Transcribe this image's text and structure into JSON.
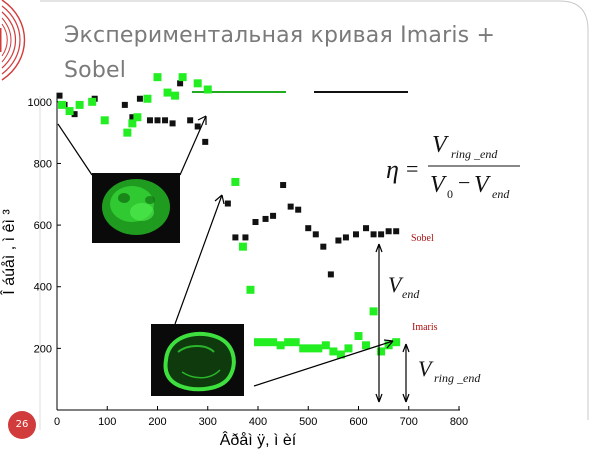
{
  "slide": {
    "title": "Экспериментальная кривая Imaris + Sobel",
    "slide_number": "26"
  },
  "formula": {
    "eta": "η",
    "equals": "=",
    "numerator_v": "V",
    "numerator_sub": "ring _end",
    "den_v0": "V",
    "den_v0_sub": "0",
    "minus": "−",
    "den_vend": "V",
    "den_vend_sub": "end"
  },
  "labels": {
    "vend_v": "V",
    "vend_sub": "end",
    "vring_v": "V",
    "vring_sub": "ring _end"
  },
  "colors": {
    "sobel_series": "#111111",
    "imaris_series": "#22ee22",
    "legend_green_line": "#22aa22",
    "legend_black_line": "#111111",
    "series_label": "#aa1111",
    "accent_red": "#d23b3b"
  },
  "chart_data": {
    "type": "scatter",
    "xlim": [
      0,
      800
    ],
    "ylim": [
      0,
      1100
    ],
    "x_ticks": [
      "0",
      "100",
      "200",
      "300",
      "400",
      "500",
      "600",
      "700",
      "800"
    ],
    "y_ticks": [
      "200",
      "400",
      "600",
      "800",
      "1000"
    ],
    "xlabel": "Âðåì ÿ, ì èí",
    "ylabel": "Î áúåì , ì êì ³",
    "series": [
      {
        "name": "Sobel",
        "marker": "square",
        "x": [
          5,
          15,
          35,
          75,
          135,
          150,
          165,
          185,
          200,
          215,
          230,
          245,
          265,
          280,
          295,
          340,
          355,
          375,
          395,
          415,
          430,
          450,
          465,
          480,
          500,
          515,
          530,
          545,
          560,
          575,
          595,
          615,
          630,
          645,
          660,
          675
        ],
        "y": [
          1020,
          990,
          960,
          1010,
          990,
          950,
          1010,
          940,
          940,
          940,
          930,
          1060,
          940,
          920,
          870,
          670,
          560,
          560,
          610,
          620,
          630,
          730,
          660,
          650,
          590,
          570,
          530,
          440,
          550,
          560,
          570,
          590,
          570,
          570,
          580,
          580
        ]
      },
      {
        "name": "Imaris",
        "marker": "square",
        "x": [
          10,
          25,
          45,
          70,
          95,
          140,
          150,
          160,
          180,
          200,
          220,
          235,
          250,
          280,
          300,
          355,
          370,
          385,
          400,
          415,
          430,
          445,
          460,
          475,
          490,
          505,
          520,
          535,
          550,
          565,
          580,
          600,
          615,
          630,
          645,
          660,
          675
        ],
        "y": [
          990,
          970,
          990,
          1000,
          940,
          900,
          930,
          950,
          1010,
          1080,
          1030,
          1020,
          1080,
          1060,
          1040,
          740,
          530,
          390,
          220,
          220,
          220,
          210,
          220,
          220,
          200,
          200,
          200,
          210,
          190,
          180,
          200,
          240,
          210,
          320,
          190,
          210,
          220
        ]
      }
    ]
  }
}
